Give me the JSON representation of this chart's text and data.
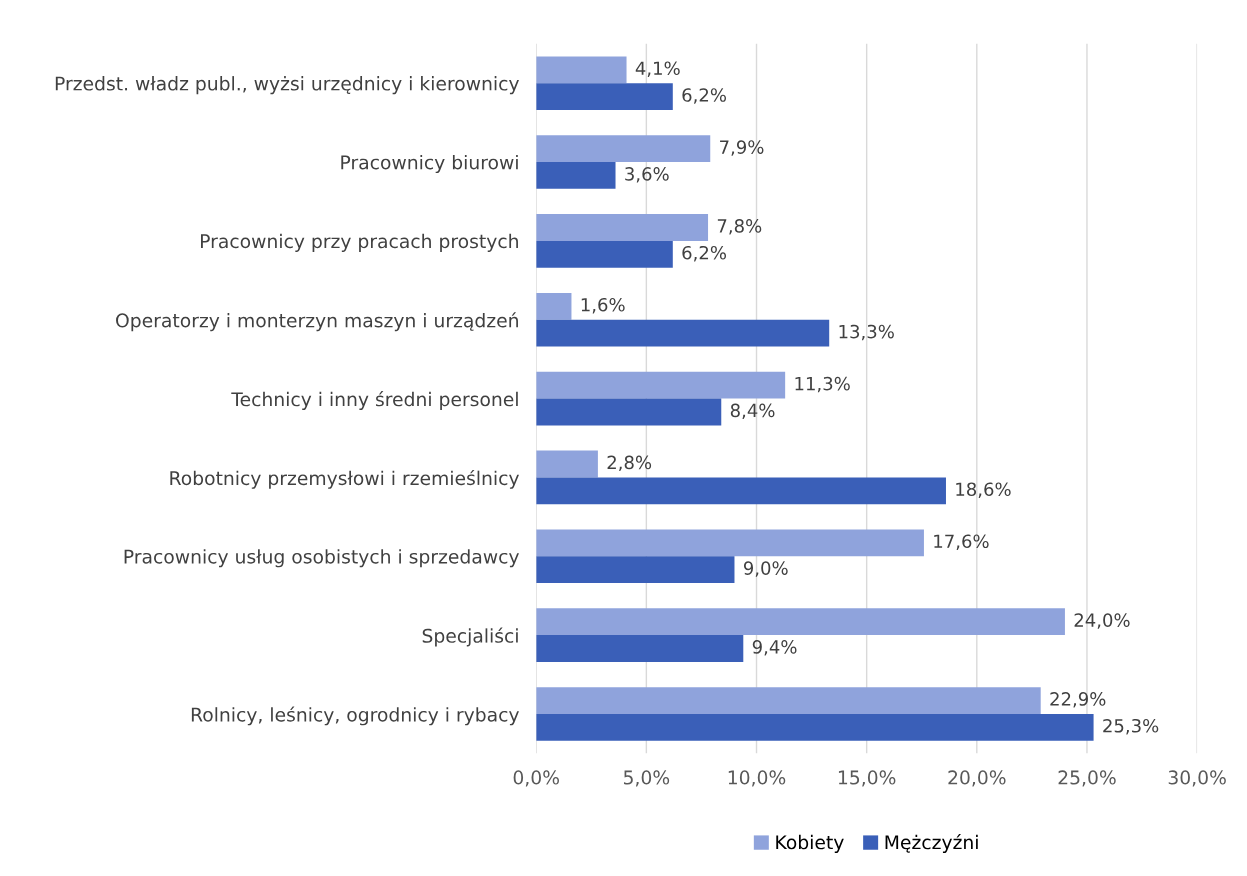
{
  "chart_data": {
    "type": "bar",
    "orientation": "horizontal",
    "categories": [
      "Przedst. władz publ., wyżsi urzędnicy i kierownicy",
      "Pracownicy biurowi",
      "Pracownicy przy pracach prostych",
      "Operatorzy i monterzyn maszyn i urządzeń",
      "Technicy i inny średni personel",
      "Robotnicy przemysłowi i rzemieślnicy",
      "Pracownicy usług osobistych i sprzedawcy",
      "Specjaliści",
      "Rolnicy, leśnicy, ogrodnicy i rybacy"
    ],
    "series": [
      {
        "name": "Kobiety",
        "color": "#8fa3dc",
        "values": [
          4.1,
          7.9,
          7.8,
          1.6,
          11.3,
          2.8,
          17.6,
          24.0,
          22.9
        ],
        "value_labels": [
          "4,1%",
          "7,9%",
          "7,8%",
          "1,6%",
          "11,3%",
          "2,8%",
          "17,6%",
          "24,0%",
          "22,9%"
        ]
      },
      {
        "name": "Mężczyźni",
        "color": "#3a5fb8",
        "values": [
          6.2,
          3.6,
          6.2,
          13.3,
          8.4,
          18.6,
          9.0,
          9.4,
          25.3
        ],
        "value_labels": [
          "6,2%",
          "3,6%",
          "6,2%",
          "13,3%",
          "8,4%",
          "18,6%",
          "9,0%",
          "9,4%",
          "25,3%"
        ]
      }
    ],
    "xlim": [
      0,
      30
    ],
    "xticks": [
      {
        "value": 0,
        "label": "0,0%"
      },
      {
        "value": 5,
        "label": "5,0%"
      },
      {
        "value": 10,
        "label": "10,0%"
      },
      {
        "value": 15,
        "label": "15,0%"
      },
      {
        "value": 20,
        "label": "20,0%"
      },
      {
        "value": 25,
        "label": "25,0%"
      },
      {
        "value": 30,
        "label": "30,0%"
      }
    ],
    "grid": "x",
    "legend": "bottom"
  }
}
